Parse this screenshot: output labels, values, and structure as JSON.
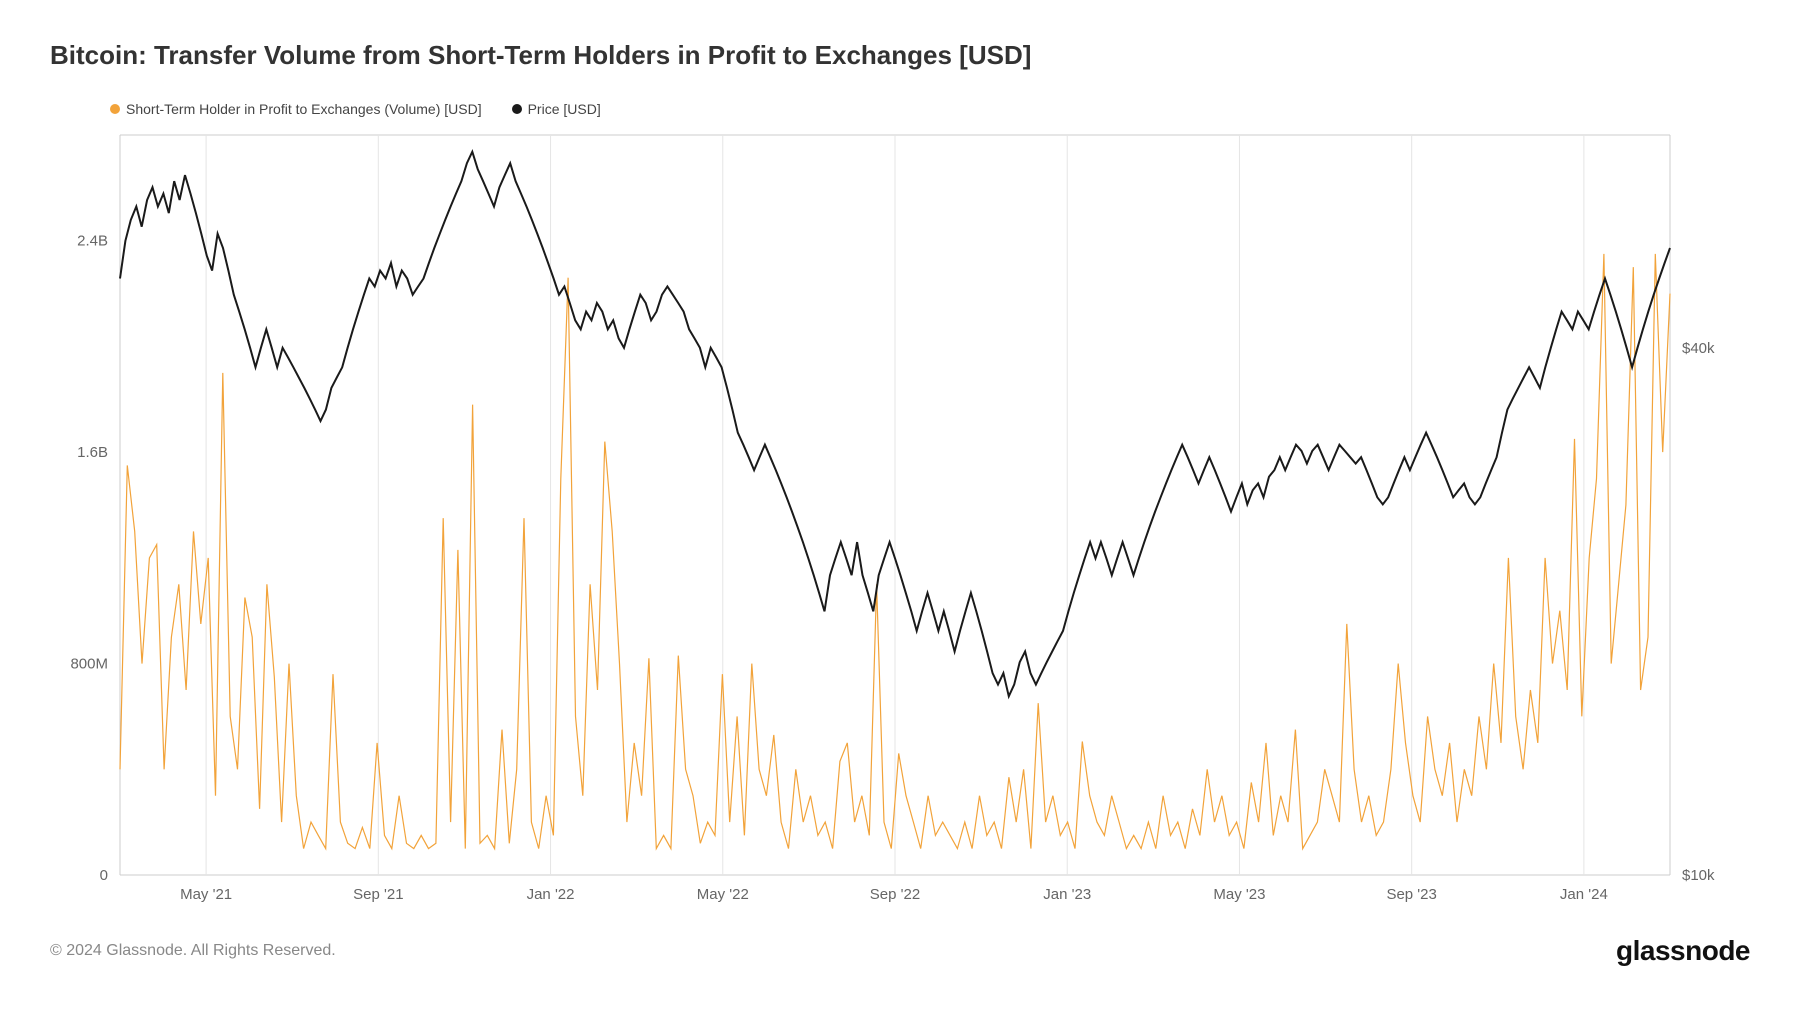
{
  "title": "Bitcoin: Transfer Volume from Short-Term Holders in Profit to Exchanges [USD]",
  "legend": {
    "series1": {
      "label": "Short-Term Holder in Profit to Exchanges (Volume) [USD]",
      "color": "#f2a33a"
    },
    "series2": {
      "label": "Price [USD]",
      "color": "#1a1a1a"
    }
  },
  "copyright": "© 2024 Glassnode. All Rights Reserved.",
  "brand": "glassnode",
  "chart": {
    "type": "line-dual-axis",
    "background_color": "#ffffff",
    "grid_color": "#e5e5e5",
    "border_color": "#cccccc",
    "x_axis": {
      "labels": [
        "May '21",
        "Sep '21",
        "Jan '22",
        "May '22",
        "Sep '22",
        "Jan '23",
        "May '23",
        "Sep '23",
        "Jan '24"
      ],
      "label_fontsize": 15,
      "label_color": "#666666"
    },
    "y_left": {
      "min": 0,
      "max": 2800000000,
      "ticks": [
        0,
        800000000,
        1600000000,
        2400000000
      ],
      "tick_labels": [
        "0",
        "800M",
        "1.6B",
        "2.4B"
      ],
      "label_fontsize": 15,
      "label_color": "#666666"
    },
    "y_right": {
      "scale": "log",
      "min": 10000,
      "max": 70000,
      "ticks": [
        10000,
        40000
      ],
      "tick_labels": [
        "$10k",
        "$40k"
      ],
      "label_fontsize": 15,
      "label_color": "#666666"
    },
    "volume_series": {
      "color": "#f2a33a",
      "stroke_width": 1.2,
      "values": [
        400,
        1550,
        1300,
        800,
        1200,
        1250,
        400,
        900,
        1100,
        700,
        1300,
        950,
        1200,
        300,
        1900,
        600,
        400,
        1050,
        900,
        250,
        1100,
        750,
        200,
        800,
        300,
        100,
        200,
        150,
        100,
        760,
        200,
        120,
        100,
        180,
        100,
        500,
        150,
        100,
        300,
        120,
        100,
        150,
        100,
        120,
        1350,
        200,
        1230,
        100,
        1780,
        120,
        150,
        100,
        550,
        120,
        400,
        1350,
        200,
        100,
        300,
        150,
        1500,
        2260,
        600,
        300,
        1100,
        700,
        1640,
        1300,
        800,
        200,
        500,
        300,
        820,
        100,
        150,
        100,
        830,
        400,
        300,
        120,
        200,
        150,
        760,
        200,
        600,
        150,
        800,
        400,
        300,
        530,
        200,
        100,
        400,
        200,
        300,
        150,
        200,
        100,
        430,
        500,
        200,
        300,
        150,
        1100,
        200,
        100,
        460,
        300,
        200,
        100,
        300,
        150,
        200,
        150,
        100,
        200,
        100,
        300,
        150,
        200,
        100,
        370,
        200,
        400,
        100,
        650,
        200,
        300,
        150,
        200,
        100,
        505,
        300,
        200,
        150,
        300,
        200,
        100,
        150,
        100,
        200,
        100,
        300,
        150,
        200,
        100,
        250,
        150,
        400,
        200,
        300,
        150,
        200,
        100,
        350,
        200,
        500,
        150,
        300,
        200,
        550,
        100,
        150,
        200,
        400,
        300,
        200,
        950,
        400,
        200,
        300,
        150,
        200,
        400,
        800,
        500,
        300,
        200,
        600,
        400,
        300,
        500,
        200,
        400,
        300,
        600,
        400,
        800,
        500,
        1200,
        600,
        400,
        700,
        500,
        1200,
        800,
        1000,
        700,
        1650,
        600,
        1200,
        1500,
        2350,
        800,
        1100,
        1400,
        2300,
        700,
        900,
        2350,
        1600,
        2200
      ]
    },
    "price_series": {
      "color": "#1a1a1a",
      "stroke_width": 2,
      "values": [
        48000,
        53000,
        56000,
        58000,
        55000,
        59000,
        61000,
        58000,
        60000,
        57000,
        62000,
        59000,
        63000,
        60000,
        57000,
        54000,
        51000,
        49000,
        54000,
        52000,
        49000,
        46000,
        44000,
        42000,
        40000,
        38000,
        40000,
        42000,
        40000,
        38000,
        40000,
        39000,
        38000,
        37000,
        36000,
        35000,
        34000,
        33000,
        34000,
        36000,
        37000,
        38000,
        40000,
        42000,
        44000,
        46000,
        48000,
        47000,
        49000,
        48000,
        50000,
        47000,
        49000,
        48000,
        46000,
        47000,
        48000,
        50000,
        52000,
        54000,
        56000,
        58000,
        60000,
        62000,
        65000,
        67000,
        64000,
        62000,
        60000,
        58000,
        61000,
        63000,
        65000,
        62000,
        60000,
        58000,
        56000,
        54000,
        52000,
        50000,
        48000,
        46000,
        47000,
        45000,
        43000,
        42000,
        44000,
        43000,
        45000,
        44000,
        42000,
        43000,
        41000,
        40000,
        42000,
        44000,
        46000,
        45000,
        43000,
        44000,
        46000,
        47000,
        46000,
        45000,
        44000,
        42000,
        41000,
        40000,
        38000,
        40000,
        39000,
        38000,
        36000,
        34000,
        32000,
        31000,
        30000,
        29000,
        30000,
        31000,
        30000,
        29000,
        28000,
        27000,
        26000,
        25000,
        24000,
        23000,
        22000,
        21000,
        20000,
        22000,
        23000,
        24000,
        23000,
        22000,
        24000,
        22000,
        21000,
        20000,
        22000,
        23000,
        24000,
        23000,
        22000,
        21000,
        20000,
        19000,
        20000,
        21000,
        20000,
        19000,
        20000,
        19000,
        18000,
        19000,
        20000,
        21000,
        20000,
        19000,
        18000,
        17000,
        16500,
        17000,
        16000,
        16500,
        17500,
        18000,
        17000,
        16500,
        17000,
        17500,
        18000,
        18500,
        19000,
        20000,
        21000,
        22000,
        23000,
        24000,
        23000,
        24000,
        23000,
        22000,
        23000,
        24000,
        23000,
        22000,
        23000,
        24000,
        25000,
        26000,
        27000,
        28000,
        29000,
        30000,
        31000,
        30000,
        29000,
        28000,
        29000,
        30000,
        29000,
        28000,
        27000,
        26000,
        27000,
        28000,
        26500,
        27500,
        28000,
        27000,
        28500,
        29000,
        30000,
        29000,
        30000,
        31000,
        30500,
        29500,
        30500,
        31000,
        30000,
        29000,
        30000,
        31000,
        30500,
        30000,
        29500,
        30000,
        29000,
        28000,
        27000,
        26500,
        27000,
        28000,
        29000,
        30000,
        29000,
        30000,
        31000,
        32000,
        31000,
        30000,
        29000,
        28000,
        27000,
        27500,
        28000,
        27000,
        26500,
        27000,
        28000,
        29000,
        30000,
        32000,
        34000,
        35000,
        36000,
        37000,
        38000,
        37000,
        36000,
        38000,
        40000,
        42000,
        44000,
        43000,
        42000,
        44000,
        43000,
        42000,
        44000,
        46000,
        48000,
        46000,
        44000,
        42000,
        40000,
        38000,
        40000,
        42000,
        44000,
        46000,
        48000,
        50000,
        52000
      ]
    }
  }
}
